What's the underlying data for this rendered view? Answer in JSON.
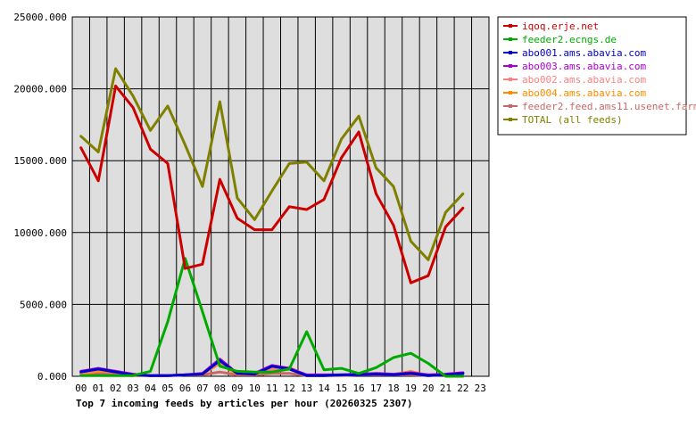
{
  "chart_data": {
    "type": "line",
    "title": "Top 7 incoming feeds by articles per hour (20260325 2307)",
    "xlabel": "",
    "ylabel": "",
    "x": [
      "00",
      "01",
      "02",
      "03",
      "04",
      "05",
      "06",
      "07",
      "08",
      "09",
      "10",
      "11",
      "12",
      "13",
      "14",
      "15",
      "16",
      "17",
      "18",
      "19",
      "20",
      "21",
      "22",
      "23"
    ],
    "ylim": [
      0,
      25000
    ],
    "yticks": [
      "0.000",
      "5000.000",
      "10000.000",
      "15000.000",
      "20000.000",
      "25000.000"
    ],
    "grid": true,
    "legend_position": "right",
    "series": [
      {
        "name": "iqoq.erje.net",
        "color": "#cc0000",
        "values": [
          15900,
          13600,
          20200,
          18700,
          15800,
          14800,
          7500,
          7800,
          13700,
          11000,
          10200,
          10200,
          11800,
          11600,
          12300,
          15200,
          17000,
          12700,
          10500,
          6500,
          7000,
          10400,
          11700,
          null
        ]
      },
      {
        "name": "feeder2.ecngs.de",
        "color": "#00aa00",
        "values": [
          50,
          50,
          50,
          50,
          350,
          3800,
          8200,
          4500,
          700,
          350,
          300,
          300,
          500,
          3100,
          450,
          550,
          200,
          600,
          1300,
          1600,
          900,
          0,
          0,
          null
        ]
      },
      {
        "name": "abo001.ams.abavia.com",
        "color": "#0000cc",
        "values": [
          300,
          500,
          300,
          100,
          50,
          50,
          100,
          150,
          1100,
          200,
          150,
          700,
          500,
          50,
          50,
          100,
          100,
          150,
          100,
          200,
          50,
          100,
          200,
          null
        ]
      },
      {
        "name": "abo003.ams.abavia.com",
        "color": "#aa00cc",
        "values": [
          350,
          550,
          350,
          150,
          50,
          50,
          100,
          200,
          1200,
          200,
          200,
          750,
          550,
          100,
          100,
          100,
          150,
          200,
          150,
          250,
          100,
          150,
          250,
          null
        ]
      },
      {
        "name": "abo002.ams.abavia.com",
        "color": "#ff7f7f",
        "values": [
          200,
          450,
          300,
          100,
          50,
          50,
          100,
          150,
          1000,
          200,
          150,
          500,
          600,
          50,
          50,
          100,
          100,
          150,
          100,
          300,
          50,
          150,
          250,
          null
        ]
      },
      {
        "name": "abo004.ams.abavia.com",
        "color": "#ff8c00",
        "values": [
          150,
          350,
          300,
          100,
          50,
          50,
          100,
          150,
          900,
          150,
          150,
          450,
          600,
          50,
          50,
          100,
          100,
          150,
          100,
          350,
          50,
          150,
          250,
          null
        ]
      },
      {
        "name": "feeder2.feed.ams11.usenet.farm",
        "color": "#cc6666",
        "values": [
          100,
          200,
          200,
          50,
          50,
          50,
          100,
          100,
          300,
          100,
          100,
          200,
          200,
          50,
          50,
          50,
          100,
          100,
          100,
          100,
          50,
          100,
          150,
          null
        ]
      },
      {
        "name": "TOTAL (all feeds)",
        "color": "#808000",
        "values": [
          16700,
          15600,
          21400,
          19500,
          17100,
          18800,
          16100,
          13200,
          19100,
          12400,
          10900,
          12900,
          14800,
          14900,
          13600,
          16500,
          18100,
          14500,
          13200,
          9400,
          8100,
          11400,
          12700,
          null
        ]
      }
    ]
  }
}
